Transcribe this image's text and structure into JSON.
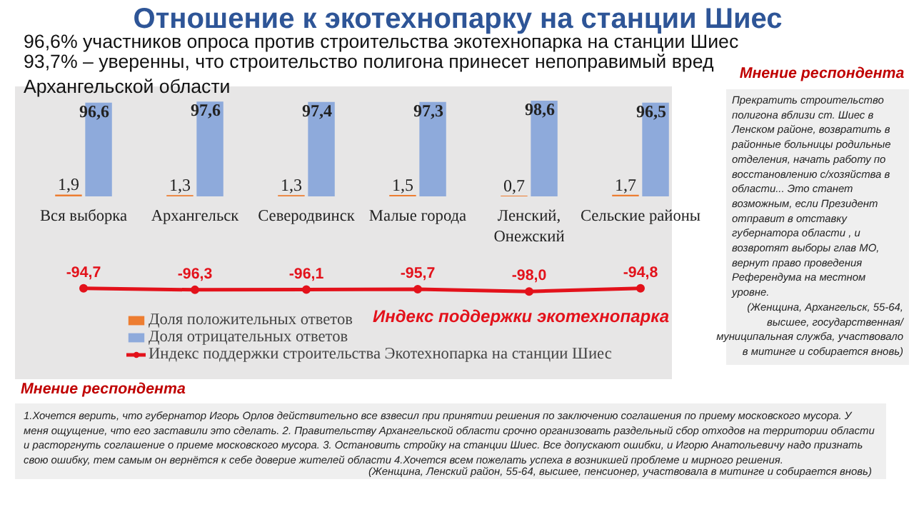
{
  "chart_data": {
    "type": "bar",
    "title": "Отношение к экотехнопарку на станции Шиес",
    "subtitle": "96,6% участников опроса против строительства экотехнопарка на станции Шиес",
    "categories": [
      "Вся выборка",
      "Архангельск",
      "Северодвинск",
      "Малые города",
      "Ленский,\nОнежский",
      "Сельские районы"
    ],
    "series": [
      {
        "name": "Доля положительных ответов",
        "color": "#ed7d31",
        "values": [
          1.9,
          1.3,
          1.3,
          1.5,
          0.7,
          1.7
        ],
        "value_labels": [
          "1,9",
          "1,3",
          "1,3",
          "1,5",
          "0,7",
          "1,7"
        ]
      },
      {
        "name": "Доля отрицательных ответов",
        "color": "#8eaadb",
        "values": [
          96.6,
          97.6,
          97.4,
          97.3,
          98.6,
          96.5
        ],
        "value_labels": [
          "96,6",
          "97,6",
          "97,4",
          "97,3",
          "98,6",
          "96,5"
        ]
      },
      {
        "name": "Индекс поддержки строительства Экотехнопарка на станции Шиес",
        "color": "#e3121b",
        "type": "line",
        "marker": "circle",
        "values": [
          -94.7,
          -96.3,
          -96.1,
          -95.7,
          -98.0,
          -94.8
        ],
        "value_labels": [
          "-94,7",
          "-96,3",
          "-96,1",
          "-95,7",
          "-98,0",
          "-94,8"
        ]
      }
    ],
    "legend": "bottom",
    "annotations": [
      "93,7%  – уверенны, что строительство полигона принесет непоправимый вред Архангельской области",
      "Мнение респондента",
      "Прекратить строительство полигона вблизи ст. Шиес в Ленском районе, возвратить в районные больницы родильные отделения, начать работу по восстановлению с/хозяйства в области... Это станет возможным, если Президент отправит в отставку губернатора области , и возвротят выборы глав МО, вернут право проведения Референдума на местном уровне.",
      "(Женщина, Архангельск, 55-64, высшее, государственная/ муниципальная служба, участвовало в митинге и собирается вновь)",
      "Индекс поддержки экотехнопарка",
      "Мнение респондента",
      "1.Хочется верить, что губернатор Игорь Орлов действительно все взвесил при принятии решения по заключению соглашения по приему московского мусора. У меня ощущение, что его заставили это сделать. 2. Правительству Архангельской области срочно организовать раздельный сбор отходов на территории области и расторгнуть соглашение о приеме московского мусора. 3. Остановить стройку на станции Шиес. Все допускают ошибки, и Игорю Анатольевичу надо признать свою ошибку, тем самым он вернётся к себе доверие жителей области  4.Хочется всем пожелать успеха в возникшей проблеме и мирного решения.",
      "(Женщина, Ленский район, 55-64, высшее,  пенсионер, участвовала в митинге и собирается вновь)"
    ]
  }
}
